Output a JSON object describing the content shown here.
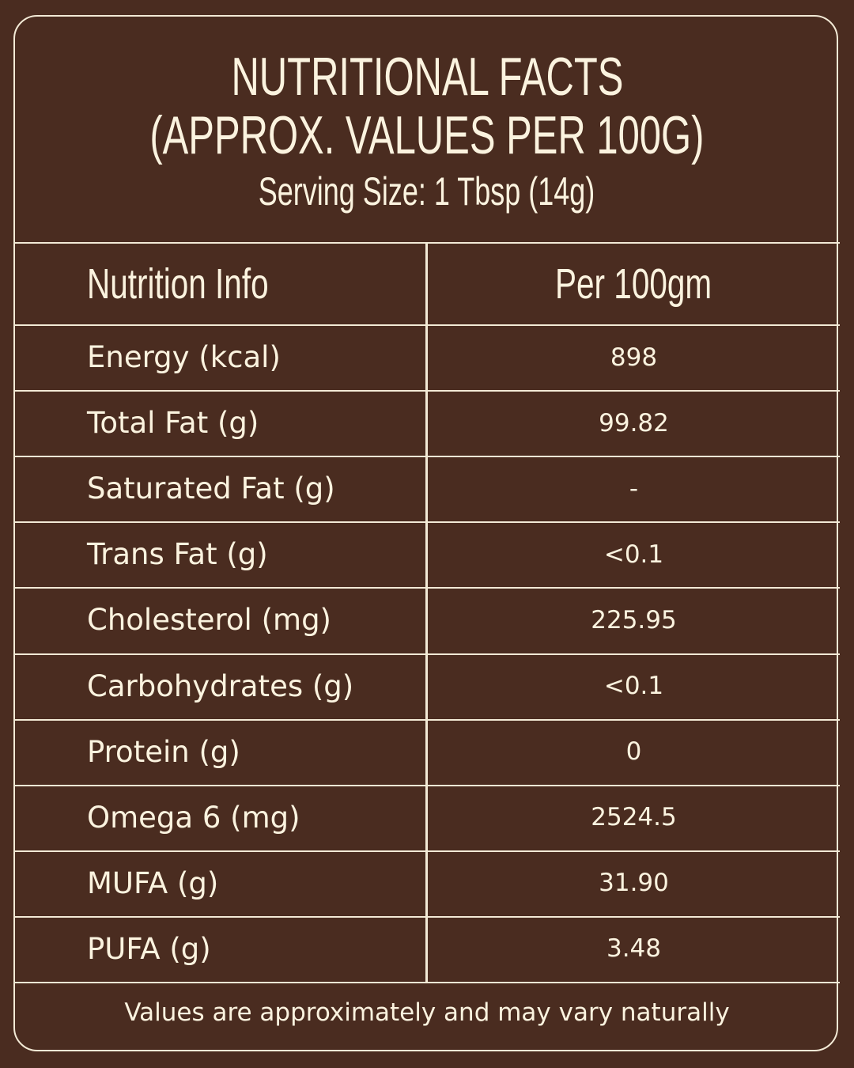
{
  "header": {
    "title_line1": "NUTRITIONAL FACTS",
    "title_line2": "(APPROX. VALUES PER 100G)",
    "serving_size": "Serving Size: 1 Tbsp (14g)"
  },
  "table": {
    "columns": [
      "Nutrition Info",
      "Per 100gm"
    ],
    "rows": [
      [
        "Energy (kcal)",
        "898"
      ],
      [
        "Total Fat (g)",
        "99.82"
      ],
      [
        "Saturated Fat (g)",
        "-"
      ],
      [
        "Trans Fat (g)",
        "<0.1"
      ],
      [
        "Cholesterol (mg)",
        "225.95"
      ],
      [
        "Carbohydrates (g)",
        "<0.1"
      ],
      [
        "Protein (g)",
        "0"
      ],
      [
        "Omega 6 (mg)",
        "2524.5"
      ],
      [
        "MUFA (g)",
        "31.90"
      ],
      [
        "PUFA (g)",
        "3.48"
      ]
    ]
  },
  "footer": {
    "note": "Values are approximately and may vary naturally"
  }
}
